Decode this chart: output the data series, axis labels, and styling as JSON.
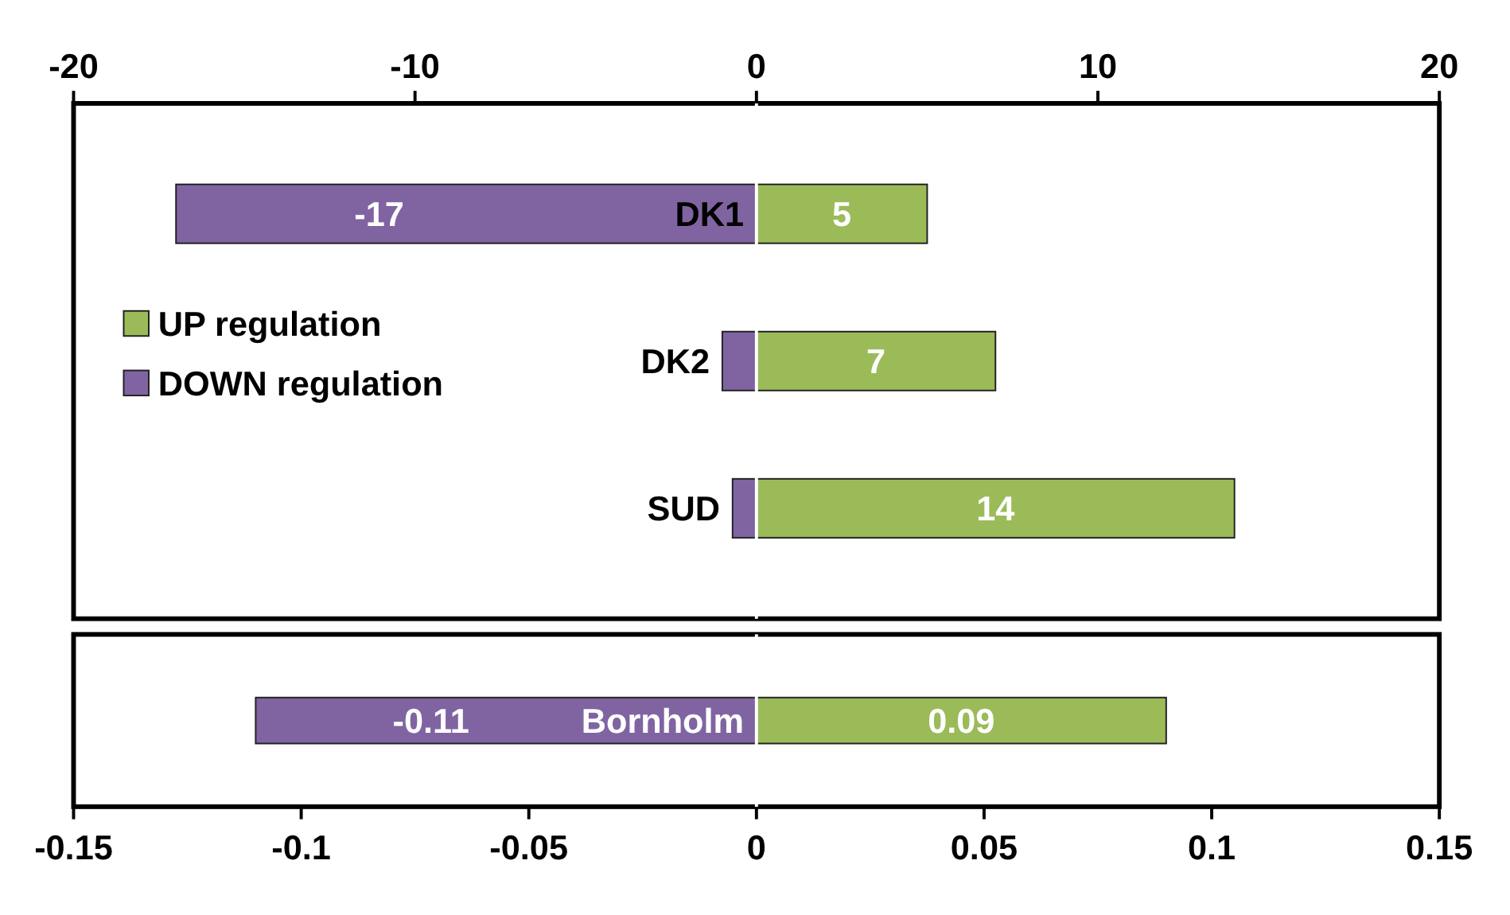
{
  "chart_data": [
    {
      "type": "bar",
      "orientation": "horizontal",
      "stacked": true,
      "categories": [
        "DK1",
        "DK2",
        "SUD"
      ],
      "xlim": [
        -20,
        20
      ],
      "xticks": [
        -20,
        -10,
        0,
        10,
        20
      ],
      "legend": "left",
      "tick_labels": "x",
      "series": [
        {
          "name": "UP regulation",
          "color": "#9bbb59",
          "values": [
            5,
            7,
            14
          ],
          "value_labels": [
            "5",
            "7",
            "14"
          ]
        },
        {
          "name": "DOWN regulation",
          "color": "#8064a2",
          "values": [
            -17,
            -1,
            -0.7
          ],
          "value_labels": [
            "-17",
            null,
            null
          ]
        }
      ]
    },
    {
      "type": "bar",
      "orientation": "horizontal",
      "stacked": true,
      "categories": [
        "Bornholm"
      ],
      "xlim": [
        -0.15,
        0.15
      ],
      "xticks": [
        -0.15,
        -0.1,
        -0.05,
        0,
        0.05,
        0.1,
        0.15
      ],
      "legend": false,
      "tick_labels": "x",
      "series": [
        {
          "color": "#9bbb59",
          "values": [
            0.09
          ],
          "value_labels": [
            "0.09"
          ]
        },
        {
          "color": "#8064a2",
          "values": [
            -0.11
          ],
          "value_labels": [
            "-0.11"
          ]
        }
      ]
    }
  ]
}
